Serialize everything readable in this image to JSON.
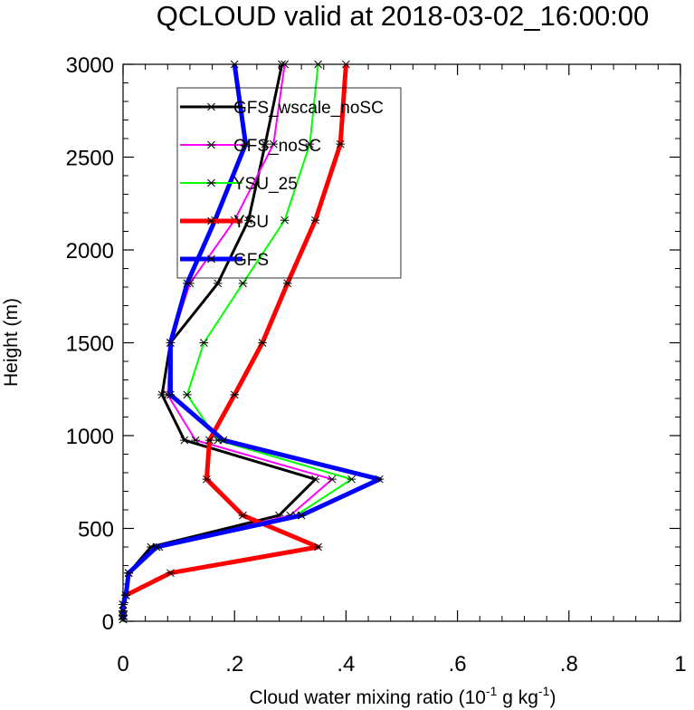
{
  "chart_data": {
    "type": "line",
    "title": "QCLOUD valid at 2018-03-02_16:00:00",
    "xlabel_main": "Cloud water mixing ratio (10",
    "xlabel_sup1": "-1",
    "xlabel_mid": " g kg",
    "xlabel_sup2": "-1",
    "xlabel_end": ")",
    "ylabel": "Height (m)",
    "xlim": [
      0,
      1
    ],
    "ylim": [
      0,
      3000
    ],
    "x_ticks": [
      0,
      0.2,
      0.4,
      0.6,
      0.8,
      1
    ],
    "x_tick_labels": [
      "0",
      ".2",
      ".4",
      ".6",
      ".8",
      "1"
    ],
    "y_ticks": [
      0,
      500,
      1000,
      1500,
      2000,
      2500,
      3000
    ],
    "y_tick_labels": [
      "0",
      "500",
      "1000",
      "1500",
      "2000",
      "2500",
      "3000"
    ],
    "grid": false,
    "legend_position": "top-left-inside",
    "series": [
      {
        "name": "GFS_wscale_noSC",
        "color": "#000000",
        "width": 3,
        "points": [
          [
            0,
            10
          ],
          [
            0,
            30
          ],
          [
            0,
            55
          ],
          [
            0,
            90
          ],
          [
            0.005,
            140
          ],
          [
            0.01,
            260
          ],
          [
            0.05,
            400
          ],
          [
            0.28,
            570
          ],
          [
            0.345,
            765
          ],
          [
            0.11,
            975
          ],
          [
            0.07,
            1220
          ],
          [
            0.085,
            1500
          ],
          [
            0.17,
            1820
          ],
          [
            0.225,
            2160
          ],
          [
            0.255,
            2570
          ],
          [
            0.285,
            3000
          ]
        ]
      },
      {
        "name": "GFS_noSC",
        "color": "#ff00ff",
        "width": 2,
        "points": [
          [
            0,
            10
          ],
          [
            0,
            30
          ],
          [
            0,
            55
          ],
          [
            0,
            90
          ],
          [
            0.005,
            140
          ],
          [
            0.01,
            260
          ],
          [
            0.06,
            400
          ],
          [
            0.3,
            570
          ],
          [
            0.375,
            765
          ],
          [
            0.13,
            975
          ],
          [
            0.08,
            1220
          ],
          [
            0.085,
            1500
          ],
          [
            0.12,
            1820
          ],
          [
            0.2,
            2160
          ],
          [
            0.27,
            2570
          ],
          [
            0.29,
            3000
          ]
        ]
      },
      {
        "name": "YSU_25",
        "color": "#00ff00",
        "width": 2,
        "points": [
          [
            0,
            10
          ],
          [
            0,
            30
          ],
          [
            0,
            55
          ],
          [
            0,
            90
          ],
          [
            0.005,
            140
          ],
          [
            0.01,
            260
          ],
          [
            0.065,
            400
          ],
          [
            0.31,
            570
          ],
          [
            0.41,
            765
          ],
          [
            0.17,
            975
          ],
          [
            0.115,
            1220
          ],
          [
            0.145,
            1500
          ],
          [
            0.215,
            1820
          ],
          [
            0.29,
            2160
          ],
          [
            0.335,
            2570
          ],
          [
            0.35,
            3000
          ]
        ]
      },
      {
        "name": "YSU",
        "color": "#ff0000",
        "width": 5,
        "points": [
          [
            0,
            10
          ],
          [
            0,
            30
          ],
          [
            0,
            55
          ],
          [
            0,
            90
          ],
          [
            0.005,
            140
          ],
          [
            0.085,
            260
          ],
          [
            0.35,
            400
          ],
          [
            0.215,
            570
          ],
          [
            0.15,
            765
          ],
          [
            0.155,
            975
          ],
          [
            0.2,
            1220
          ],
          [
            0.25,
            1500
          ],
          [
            0.295,
            1820
          ],
          [
            0.345,
            2160
          ],
          [
            0.39,
            2570
          ],
          [
            0.4,
            3000
          ]
        ]
      },
      {
        "name": "GFS",
        "color": "#0000ff",
        "width": 5,
        "points": [
          [
            0,
            10
          ],
          [
            0,
            30
          ],
          [
            0,
            55
          ],
          [
            0,
            90
          ],
          [
            0.005,
            140
          ],
          [
            0.01,
            260
          ],
          [
            0.06,
            400
          ],
          [
            0.32,
            570
          ],
          [
            0.46,
            765
          ],
          [
            0.18,
            975
          ],
          [
            0.085,
            1220
          ],
          [
            0.085,
            1500
          ],
          [
            0.115,
            1820
          ],
          [
            0.165,
            2160
          ],
          [
            0.22,
            2570
          ],
          [
            0.2,
            3000
          ]
        ]
      }
    ]
  }
}
